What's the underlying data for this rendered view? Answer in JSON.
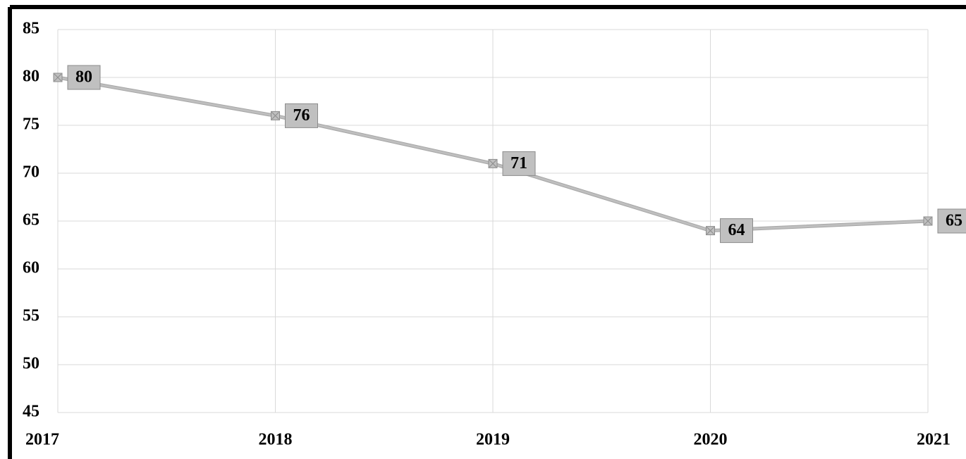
{
  "chart_data": {
    "type": "line",
    "categories": [
      "2017",
      "2018",
      "2019",
      "2020",
      "2021"
    ],
    "values": [
      80,
      76,
      71,
      64,
      65
    ],
    "color": "#bfbfbf",
    "ylim": [
      45,
      85
    ],
    "yticks": [
      45,
      50,
      55,
      60,
      65,
      70,
      75,
      80,
      85
    ],
    "grid": true
  }
}
